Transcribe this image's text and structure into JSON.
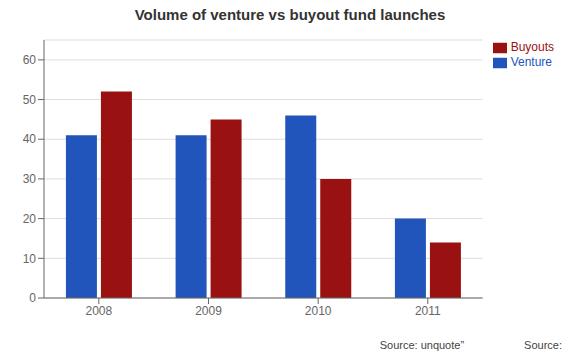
{
  "chart_data": {
    "type": "bar",
    "title": "Volume of venture vs buyout fund launches",
    "categories": [
      "2008",
      "2009",
      "2010",
      "2011"
    ],
    "series": [
      {
        "name": "Venture",
        "color": "#2255bb",
        "values": [
          41,
          41,
          46,
          20
        ]
      },
      {
        "name": "Buyouts",
        "color": "#991111",
        "values": [
          52,
          45,
          30,
          14
        ]
      }
    ],
    "ylim": [
      0,
      65
    ],
    "yticks": [
      0,
      10,
      20,
      30,
      40,
      50,
      60
    ],
    "grid": true,
    "legend": "upper right",
    "annotations": [
      "Source: unquote”",
      "Source:"
    ]
  }
}
